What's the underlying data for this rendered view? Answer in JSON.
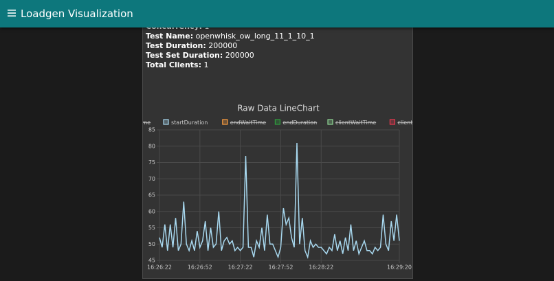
{
  "header": {
    "title": "Loadgen Visualization"
  },
  "info": [
    {
      "label": "Concurrency:",
      "value": "1"
    },
    {
      "label": "Test Name:",
      "value": "openwhisk_ow_long_11_1_10_1"
    },
    {
      "label": "Test Duration:",
      "value": "200000"
    },
    {
      "label": "Test Set Duration:",
      "value": "200000"
    },
    {
      "label": "Total Clients:",
      "value": "1"
    }
  ],
  "chart_data": {
    "type": "line",
    "title": "Raw Data LineChart",
    "grid": true,
    "x": [
      "16:26:22",
      "16:26:24",
      "16:26:26",
      "16:26:28",
      "16:26:30",
      "16:26:32",
      "16:26:34",
      "16:26:36",
      "16:26:38",
      "16:26:40",
      "16:26:42",
      "16:26:44",
      "16:26:46",
      "16:26:48",
      "16:26:50",
      "16:26:52",
      "16:26:54",
      "16:26:56",
      "16:26:58",
      "16:27:00",
      "16:27:02",
      "16:27:04",
      "16:27:06",
      "16:27:08",
      "16:27:10",
      "16:27:12",
      "16:27:14",
      "16:27:16",
      "16:27:18",
      "16:27:20",
      "16:27:22",
      "16:27:24",
      "16:27:26",
      "16:27:28",
      "16:27:30",
      "16:27:32",
      "16:27:34",
      "16:27:36",
      "16:27:38",
      "16:27:40",
      "16:27:42",
      "16:27:44",
      "16:27:46",
      "16:27:48",
      "16:27:50",
      "16:27:52",
      "16:27:54",
      "16:27:56",
      "16:27:58",
      "16:28:00",
      "16:28:02",
      "16:28:04",
      "16:28:06",
      "16:28:08",
      "16:28:10",
      "16:28:12",
      "16:28:14",
      "16:28:16",
      "16:28:18",
      "16:28:20",
      "16:28:22",
      "16:28:24",
      "16:28:26",
      "16:28:28",
      "16:28:30",
      "16:28:32",
      "16:28:34",
      "16:28:36",
      "16:28:38",
      "16:28:40",
      "16:28:42",
      "16:28:44",
      "16:28:46",
      "16:28:48",
      "16:28:50",
      "16:28:52",
      "16:28:54",
      "16:28:56",
      "16:28:58",
      "16:29:00",
      "16:29:02",
      "16:29:04",
      "16:29:06",
      "16:29:08",
      "16:29:10",
      "16:29:12",
      "16:29:14",
      "16:29:16",
      "16:29:18",
      "16:29:20"
    ],
    "series": [
      {
        "name": "startWaitTime",
        "color": "#36a2eb",
        "hidden": true
      },
      {
        "name": "startDuration",
        "color": "#a8d8ef",
        "hidden": false,
        "values": [
          52,
          49,
          56,
          48,
          56,
          49,
          58,
          48,
          50,
          63,
          50,
          48,
          51,
          48,
          54,
          49,
          51,
          57,
          48,
          55,
          49,
          50,
          60,
          48,
          51,
          52,
          50,
          51,
          48,
          49,
          48,
          49,
          77,
          49,
          49,
          46,
          51,
          49,
          55,
          48,
          59,
          50,
          50,
          48,
          46,
          49,
          61,
          56,
          58,
          52,
          49,
          81,
          50,
          58,
          48,
          46,
          51,
          49,
          50,
          49,
          49,
          48,
          47,
          49,
          48,
          53,
          48,
          51,
          47,
          52,
          48,
          56,
          48,
          51,
          47,
          49,
          51,
          48,
          48,
          47,
          49,
          48,
          49,
          59,
          50,
          48,
          57,
          51,
          59,
          51
        ]
      },
      {
        "name": "endWaitTime",
        "color": "#ff9f40",
        "hidden": true
      },
      {
        "name": "endDuration",
        "color": "#2e9e3e",
        "hidden": true
      },
      {
        "name": "clientWaitTime",
        "color": "#8fd694",
        "hidden": true
      },
      {
        "name": "clientDuration",
        "color": "#e8384f",
        "hidden": true
      }
    ],
    "ylim": [
      45,
      85
    ],
    "yticks": [
      45,
      50,
      55,
      60,
      65,
      70,
      75,
      80,
      85
    ],
    "xlim": [
      "16:26:22",
      "16:29:20"
    ],
    "xticks": [
      "16:26:22",
      "16:26:52",
      "16:27:22",
      "16:27:52",
      "16:28:22",
      "16:29:20"
    ]
  }
}
